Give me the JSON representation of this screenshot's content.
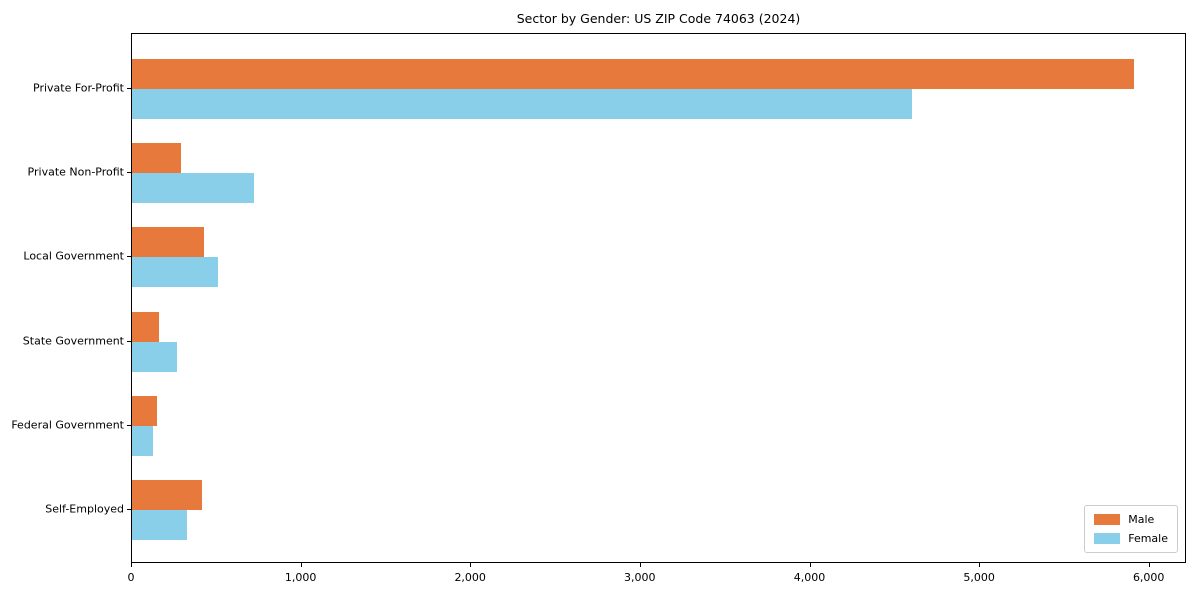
{
  "chart_data": {
    "type": "bar",
    "orientation": "horizontal",
    "title": "Sector by Gender: US ZIP Code 74063 (2024)",
    "categories": [
      "Private For-Profit",
      "Private Non-Profit",
      "Local Government",
      "State Government",
      "Federal Government",
      "Self-Employed"
    ],
    "series": [
      {
        "name": "Male",
        "color": "#E8793C",
        "values": [
          5910,
          290,
          425,
          160,
          145,
          410
        ]
      },
      {
        "name": "Female",
        "color": "#89CFE9",
        "values": [
          4600,
          720,
          505,
          265,
          125,
          325
        ]
      }
    ],
    "xlabel": "",
    "ylabel": "",
    "xlim": [
      0,
      6220
    ],
    "x_ticks": [
      0,
      1000,
      2000,
      3000,
      4000,
      5000,
      6000
    ],
    "x_tick_labels": [
      "0",
      "1,000",
      "2,000",
      "3,000",
      "4,000",
      "5,000",
      "6,000"
    ],
    "grid": false,
    "legend": {
      "position": "lower right",
      "entries": [
        "Male",
        "Female"
      ]
    }
  }
}
